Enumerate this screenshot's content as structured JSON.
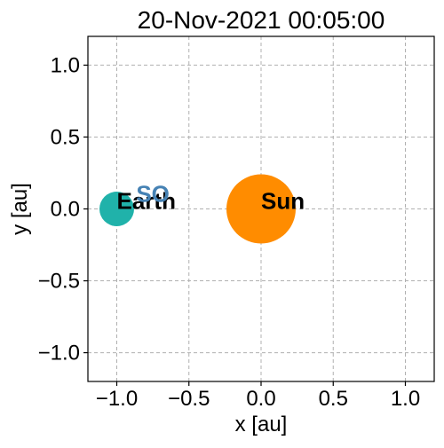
{
  "chart_data": {
    "type": "scatter",
    "title": "20-Nov-2021 00:05:00",
    "xlabel": "x [au]",
    "ylabel": "y [au]",
    "xlim": [
      -1.2,
      1.2
    ],
    "ylim": [
      -1.2,
      1.2
    ],
    "grid": true,
    "xticks": [
      -1.0,
      -0.5,
      0.0,
      0.5,
      1.0
    ],
    "yticks": [
      -1.0,
      -0.5,
      0.0,
      0.5,
      1.0
    ],
    "xtick_labels": [
      "−1.0",
      "−0.5",
      "0.0",
      "0.5",
      "1.0"
    ],
    "ytick_labels": [
      "−1.0",
      "−0.5",
      "0.0",
      "0.5",
      "1.0"
    ],
    "bodies": [
      {
        "name": "Sun",
        "label": "Sun",
        "x": 0.0,
        "y": 0.0,
        "radius_au": 0.24,
        "color": "#ff8c00"
      },
      {
        "name": "Earth",
        "label": "Earth",
        "x": -1.0,
        "y": 0.0,
        "radius_au": 0.12,
        "color": "#20b2aa"
      }
    ],
    "spacecraft": [
      {
        "name": "SO",
        "label": "SO",
        "x": -0.75,
        "y": 0.05,
        "color": "#4682b4"
      }
    ]
  }
}
